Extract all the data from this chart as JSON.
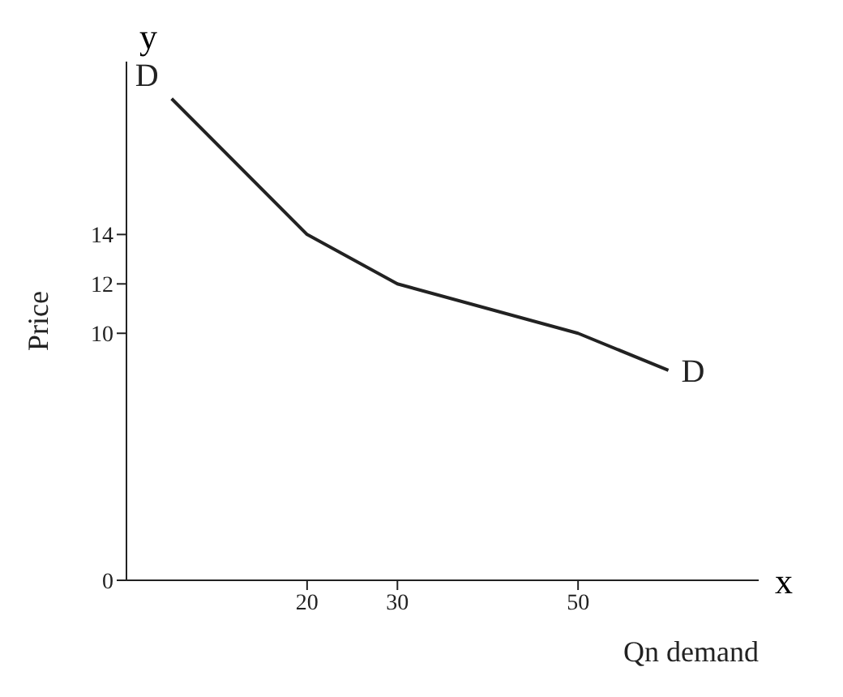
{
  "chart_data": {
    "type": "line",
    "xlabel": "Qn demand",
    "ylabel": "Price",
    "x": [
      5,
      20,
      30,
      50,
      60
    ],
    "series": [
      {
        "color": "#222222",
        "values": [
          19.5,
          14,
          12,
          10,
          8.5
        ]
      }
    ],
    "xlim": [
      0,
      70
    ],
    "ylim": [
      0,
      21
    ],
    "xticks": [
      20,
      30,
      50
    ],
    "yticks": [
      0,
      10,
      12,
      14
    ],
    "marker": "none",
    "line_style": "solid",
    "grid": false,
    "annotations": [
      {
        "text": "D",
        "x": 5,
        "y": 19.5
      },
      {
        "text": "D",
        "x": 60,
        "y": 8.5
      },
      "y",
      "x"
    ]
  }
}
